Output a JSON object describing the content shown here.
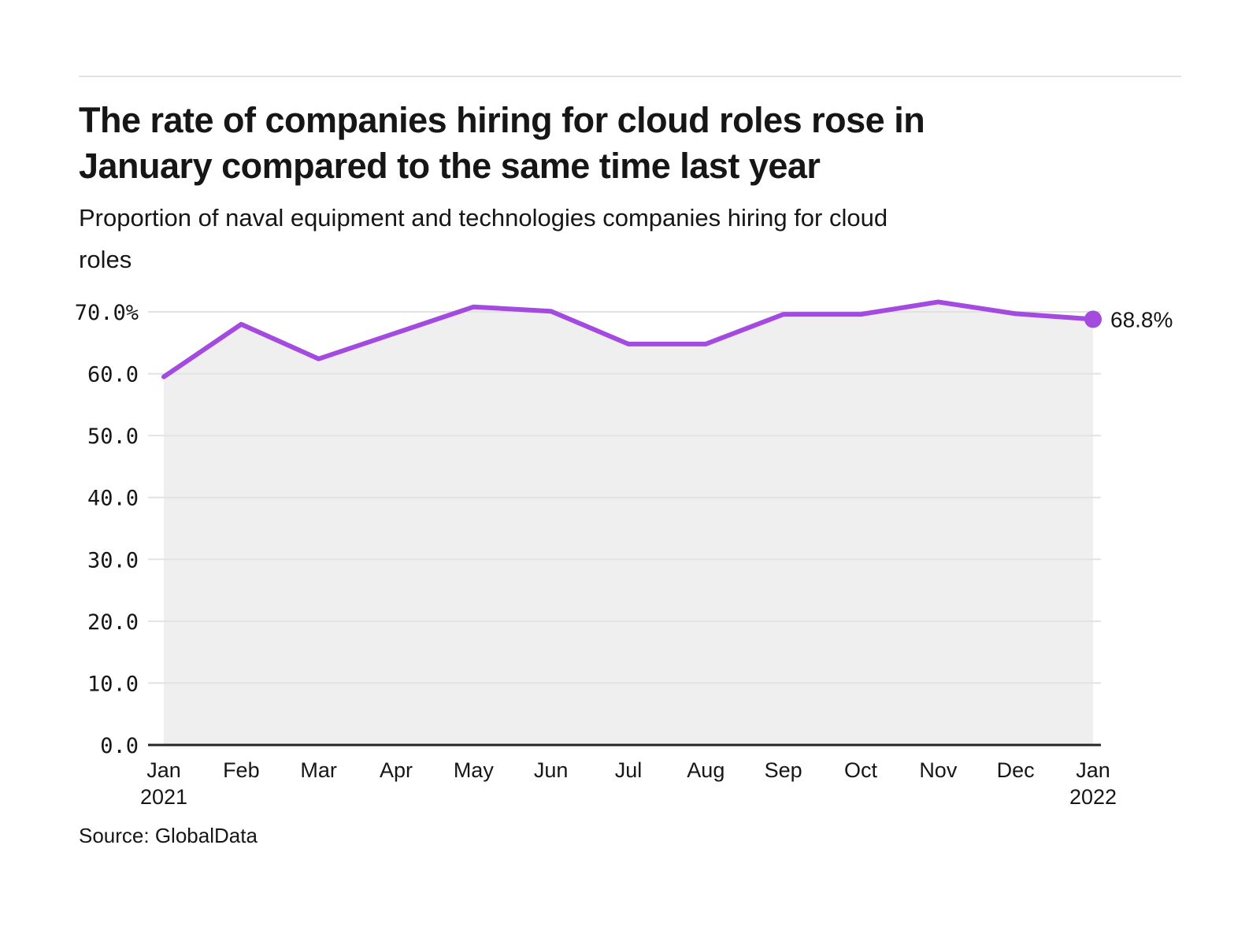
{
  "header": {
    "title_line1": "The rate of companies hiring for cloud roles rose in",
    "title_line2": "January compared to the same time last year",
    "subtitle_line1": "Proportion of naval equipment and technologies companies hiring for cloud",
    "subtitle_line2": "roles"
  },
  "source": "Source: GlobalData",
  "chart_data": {
    "type": "area",
    "title": "The rate of companies hiring for cloud roles rose in January compared to the same time last year",
    "subtitle": "Proportion of naval equipment and technologies companies hiring for cloud roles",
    "categories": [
      "Jan",
      "Feb",
      "Mar",
      "Apr",
      "May",
      "Jun",
      "Jul",
      "Aug",
      "Sep",
      "Oct",
      "Nov",
      "Dec",
      "Jan"
    ],
    "category_sublabels": [
      "2021",
      "",
      "",
      "",
      "",
      "",
      "",
      "",
      "",
      "",
      "",
      "",
      "2022"
    ],
    "values": [
      59.5,
      68.0,
      62.4,
      66.6,
      70.8,
      70.1,
      64.8,
      64.8,
      69.6,
      69.6,
      71.6,
      69.7,
      68.8
    ],
    "unit": "%",
    "end_label": "68.8%",
    "yticks": [
      {
        "value": 0,
        "label": "0.0"
      },
      {
        "value": 10,
        "label": "10.0"
      },
      {
        "value": 20,
        "label": "20.0"
      },
      {
        "value": 30,
        "label": "30.0"
      },
      {
        "value": 40,
        "label": "40.0"
      },
      {
        "value": 50,
        "label": "50.0"
      },
      {
        "value": 60,
        "label": "60.0"
      },
      {
        "value": 70,
        "label": "70.0%"
      }
    ],
    "ylim": [
      0,
      73
    ],
    "grid": true,
    "legend": "none",
    "colors": {
      "line": "#a34ae0",
      "area": "#efefef",
      "grid": "#e2e2e2",
      "axis": "#262626",
      "text": "#161616"
    }
  }
}
